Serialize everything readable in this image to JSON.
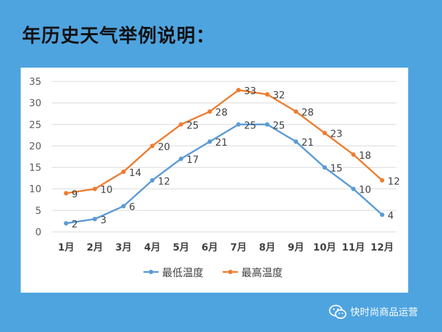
{
  "slide": {
    "title": "年历史天气举例说明："
  },
  "watermark": {
    "text": "快时尚商品运营"
  },
  "colors": {
    "background": "#4ea4df",
    "low": "#5b9bd5",
    "high": "#ed7d31"
  },
  "chart_data": {
    "type": "line",
    "categories": [
      "1月",
      "2月",
      "3月",
      "4月",
      "5月",
      "6月",
      "7月",
      "8月",
      "9月",
      "10月",
      "11月",
      "12月"
    ],
    "series": [
      {
        "name": "最低温度",
        "color": "#5b9bd5",
        "values": [
          2,
          3,
          6,
          12,
          17,
          21,
          25,
          25,
          21,
          15,
          10,
          4
        ]
      },
      {
        "name": "最高温度",
        "color": "#ed7d31",
        "values": [
          9,
          10,
          14,
          20,
          25,
          28,
          33,
          32,
          28,
          23,
          18,
          12
        ]
      }
    ],
    "ylim": [
      0,
      35
    ],
    "yticks": [
      0,
      5,
      10,
      15,
      20,
      25,
      30,
      35
    ],
    "grid": true,
    "legend": "bottom"
  }
}
